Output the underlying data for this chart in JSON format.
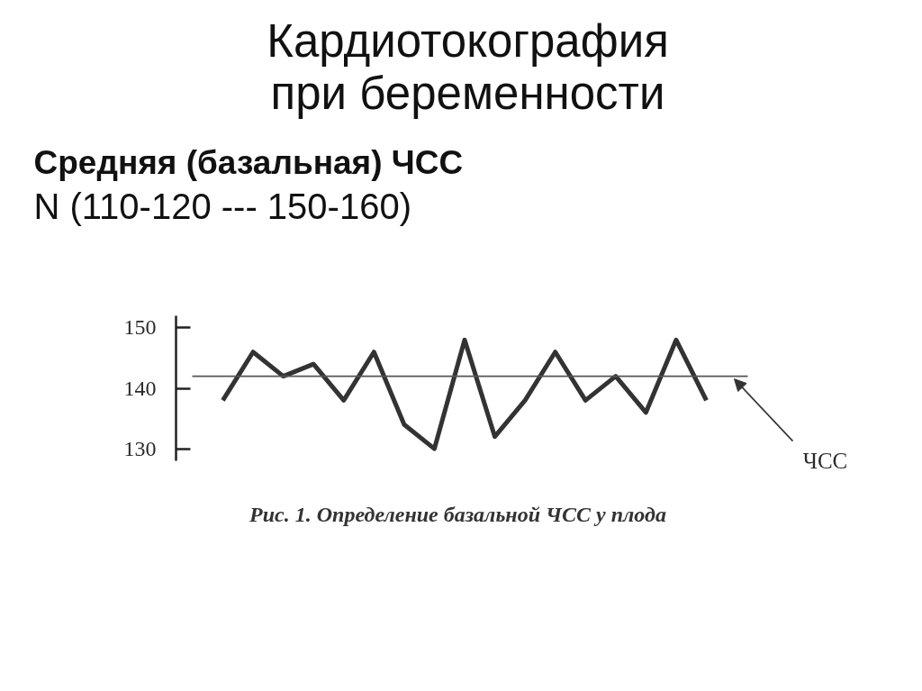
{
  "chart_data": {
    "type": "line",
    "title": "Кардиотокография\nпри беременности",
    "subtitle": "Средняя (базальная) ЧСС",
    "annotations": [
      "N (110-120  --- 150-160)",
      "Рис. 1. Определение базальной ЧСС у плода"
    ],
    "categories": [
      null,
      null,
      null,
      null,
      null,
      null,
      null,
      null,
      null,
      null,
      null,
      null,
      null,
      null,
      null,
      null,
      null
    ],
    "series": [
      {
        "color": "#333333",
        "values": [
          138,
          146,
          142,
          144,
          138,
          146,
          134,
          130,
          148,
          132,
          138,
          146,
          138,
          142,
          136,
          148,
          138
        ]
      }
    ],
    "ylim": [
      128,
      152
    ],
    "yticks": [
      130,
      140,
      150
    ],
    "tick_labels": "y",
    "line_style": "solid",
    "ref_lines": [
      {
        "axis": "y",
        "value": 142,
        "label": "ЧСС",
        "color": "#555555"
      }
    ]
  }
}
